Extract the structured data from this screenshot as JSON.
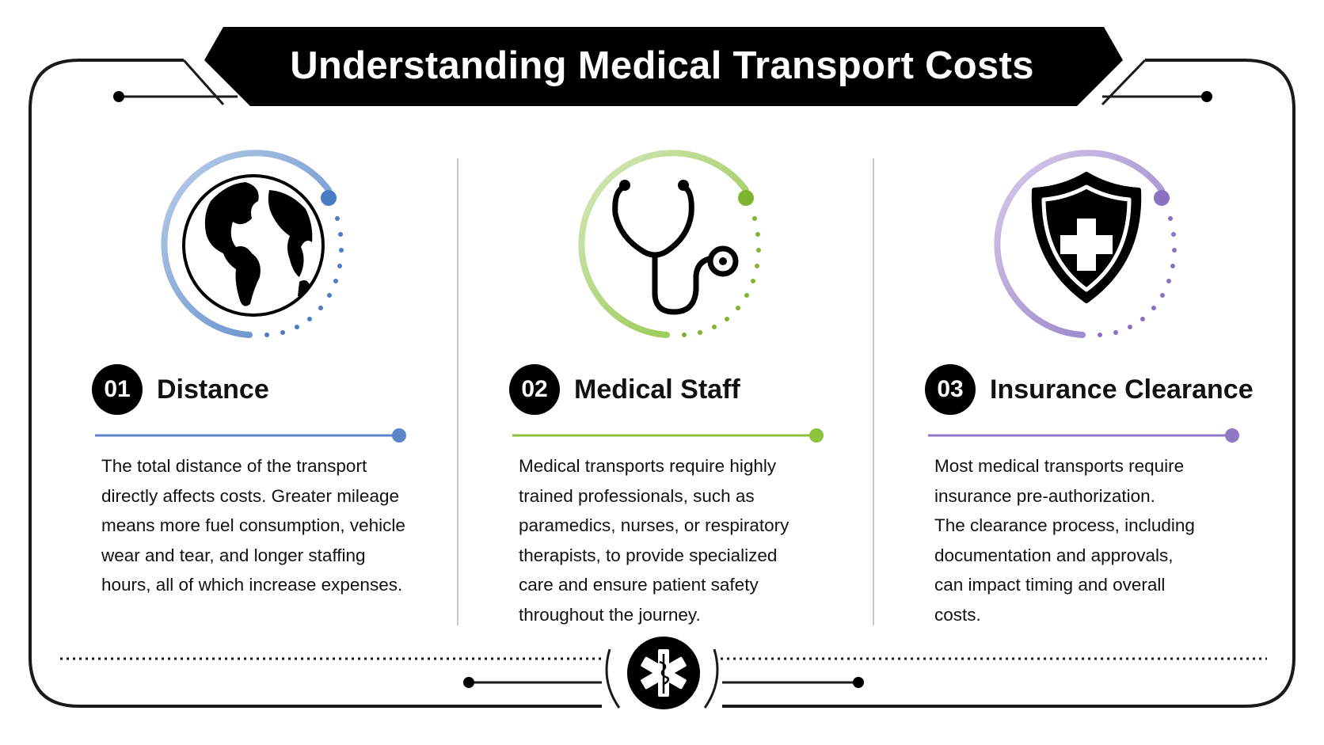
{
  "title": "Understanding Medical Transport Costs",
  "colors": {
    "blue": "#5a86c8",
    "green": "#8dc23c",
    "purple": "#8f78c4"
  },
  "items": [
    {
      "number": "01",
      "heading": "Distance",
      "icon": "globe-icon",
      "lines": [
        "The total distance of the transport",
        "directly affects costs. Greater mileage",
        "means more fuel consumption, vehicle",
        "wear and tear, and longer staffing",
        "hours, all of which increase expenses."
      ]
    },
    {
      "number": "02",
      "heading": "Medical Staff",
      "icon": "stethoscope-icon",
      "lines": [
        "Medical transports require highly",
        "trained professionals, such as",
        "paramedics, nurses, or respiratory",
        "therapists, to provide specialized",
        "care and ensure patient safety",
        "throughout the journey."
      ]
    },
    {
      "number": "03",
      "heading": "Insurance Clearance",
      "icon": "shield-cross-icon",
      "lines": [
        "Most medical transports require",
        "insurance pre-authorization.",
        "The clearance process, including",
        "documentation and approvals,",
        "can impact timing and overall",
        "costs."
      ]
    }
  ],
  "footer_icon": "star-of-life-icon"
}
